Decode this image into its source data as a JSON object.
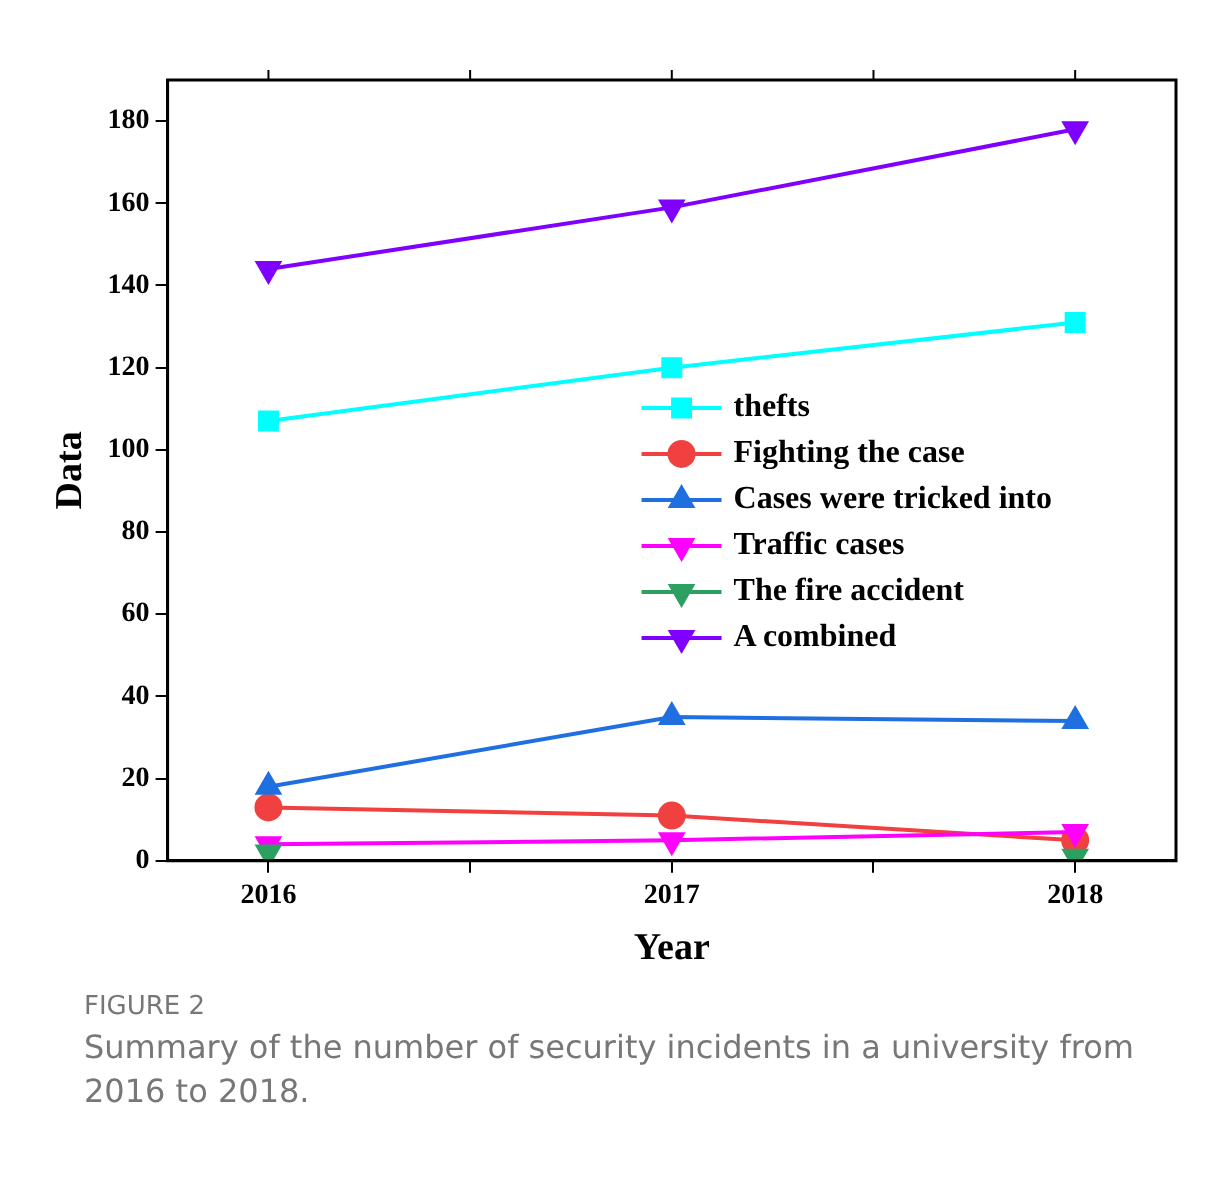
{
  "chart_data": {
    "type": "line",
    "xlabel": "Year",
    "ylabel": "Data",
    "x": [
      2016,
      2017,
      2018
    ],
    "xlim": [
      2015.75,
      2018.25
    ],
    "xticks": [
      2016,
      {
        "value": 2016.5,
        "label": null
      },
      2017,
      {
        "value": 2017.5,
        "label": null
      },
      2018
    ],
    "ylim": [
      0,
      190
    ],
    "yticks": [
      0,
      20,
      40,
      60,
      80,
      100,
      120,
      140,
      160,
      180
    ],
    "series": [
      {
        "name": "thefts",
        "color": "#00ffff",
        "marker": "square",
        "values": [
          107,
          120,
          131
        ]
      },
      {
        "name": "Fighting the case",
        "color": "#f04040",
        "marker": "circle",
        "values": [
          13,
          11,
          5
        ]
      },
      {
        "name": "Cases were tricked into",
        "color": "#1f6fe0",
        "marker": "triangle",
        "values": [
          18,
          35,
          34
        ]
      },
      {
        "name": "Traffic cases",
        "color": "#ff00ff",
        "marker": "triangle-down",
        "values": [
          4,
          5,
          7
        ]
      },
      {
        "name": "The fire accident",
        "color": "#2ca060",
        "marker": "triangle-down",
        "values": [
          2,
          null,
          1
        ]
      },
      {
        "name": "A combined",
        "color": "#7f00ff",
        "marker": "triangle-down",
        "values": [
          144,
          159,
          178
        ]
      }
    ],
    "legend": "right",
    "grid": false,
    "line_style": "solid",
    "annotations": [
      "FIGURE 2",
      "Summary of the number of security incidents in a university from 2016 to 2018."
    ]
  }
}
